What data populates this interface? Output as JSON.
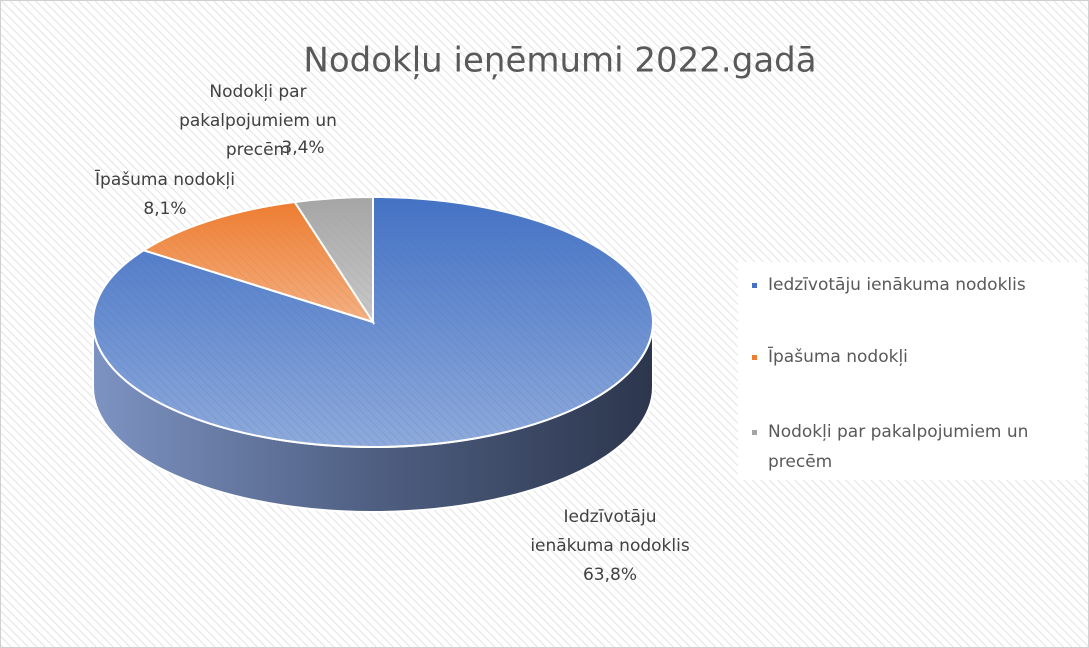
{
  "chart_data": {
    "type": "pie",
    "title": "Nodokļu ieņēmumi 2022.gadā",
    "categories": [
      "Iedzīvotāju ienākuma nodoklis",
      "Īpašuma nodokļi",
      "Nodokļi par pakalpojumiem un precēm"
    ],
    "values": [
      63.8,
      8.1,
      3.4
    ],
    "value_labels": [
      "63,8%",
      "8,1%",
      "3,4%"
    ],
    "colors": [
      "#4472c4",
      "#ed7d31",
      "#a5a5a5"
    ],
    "legend": "right"
  }
}
